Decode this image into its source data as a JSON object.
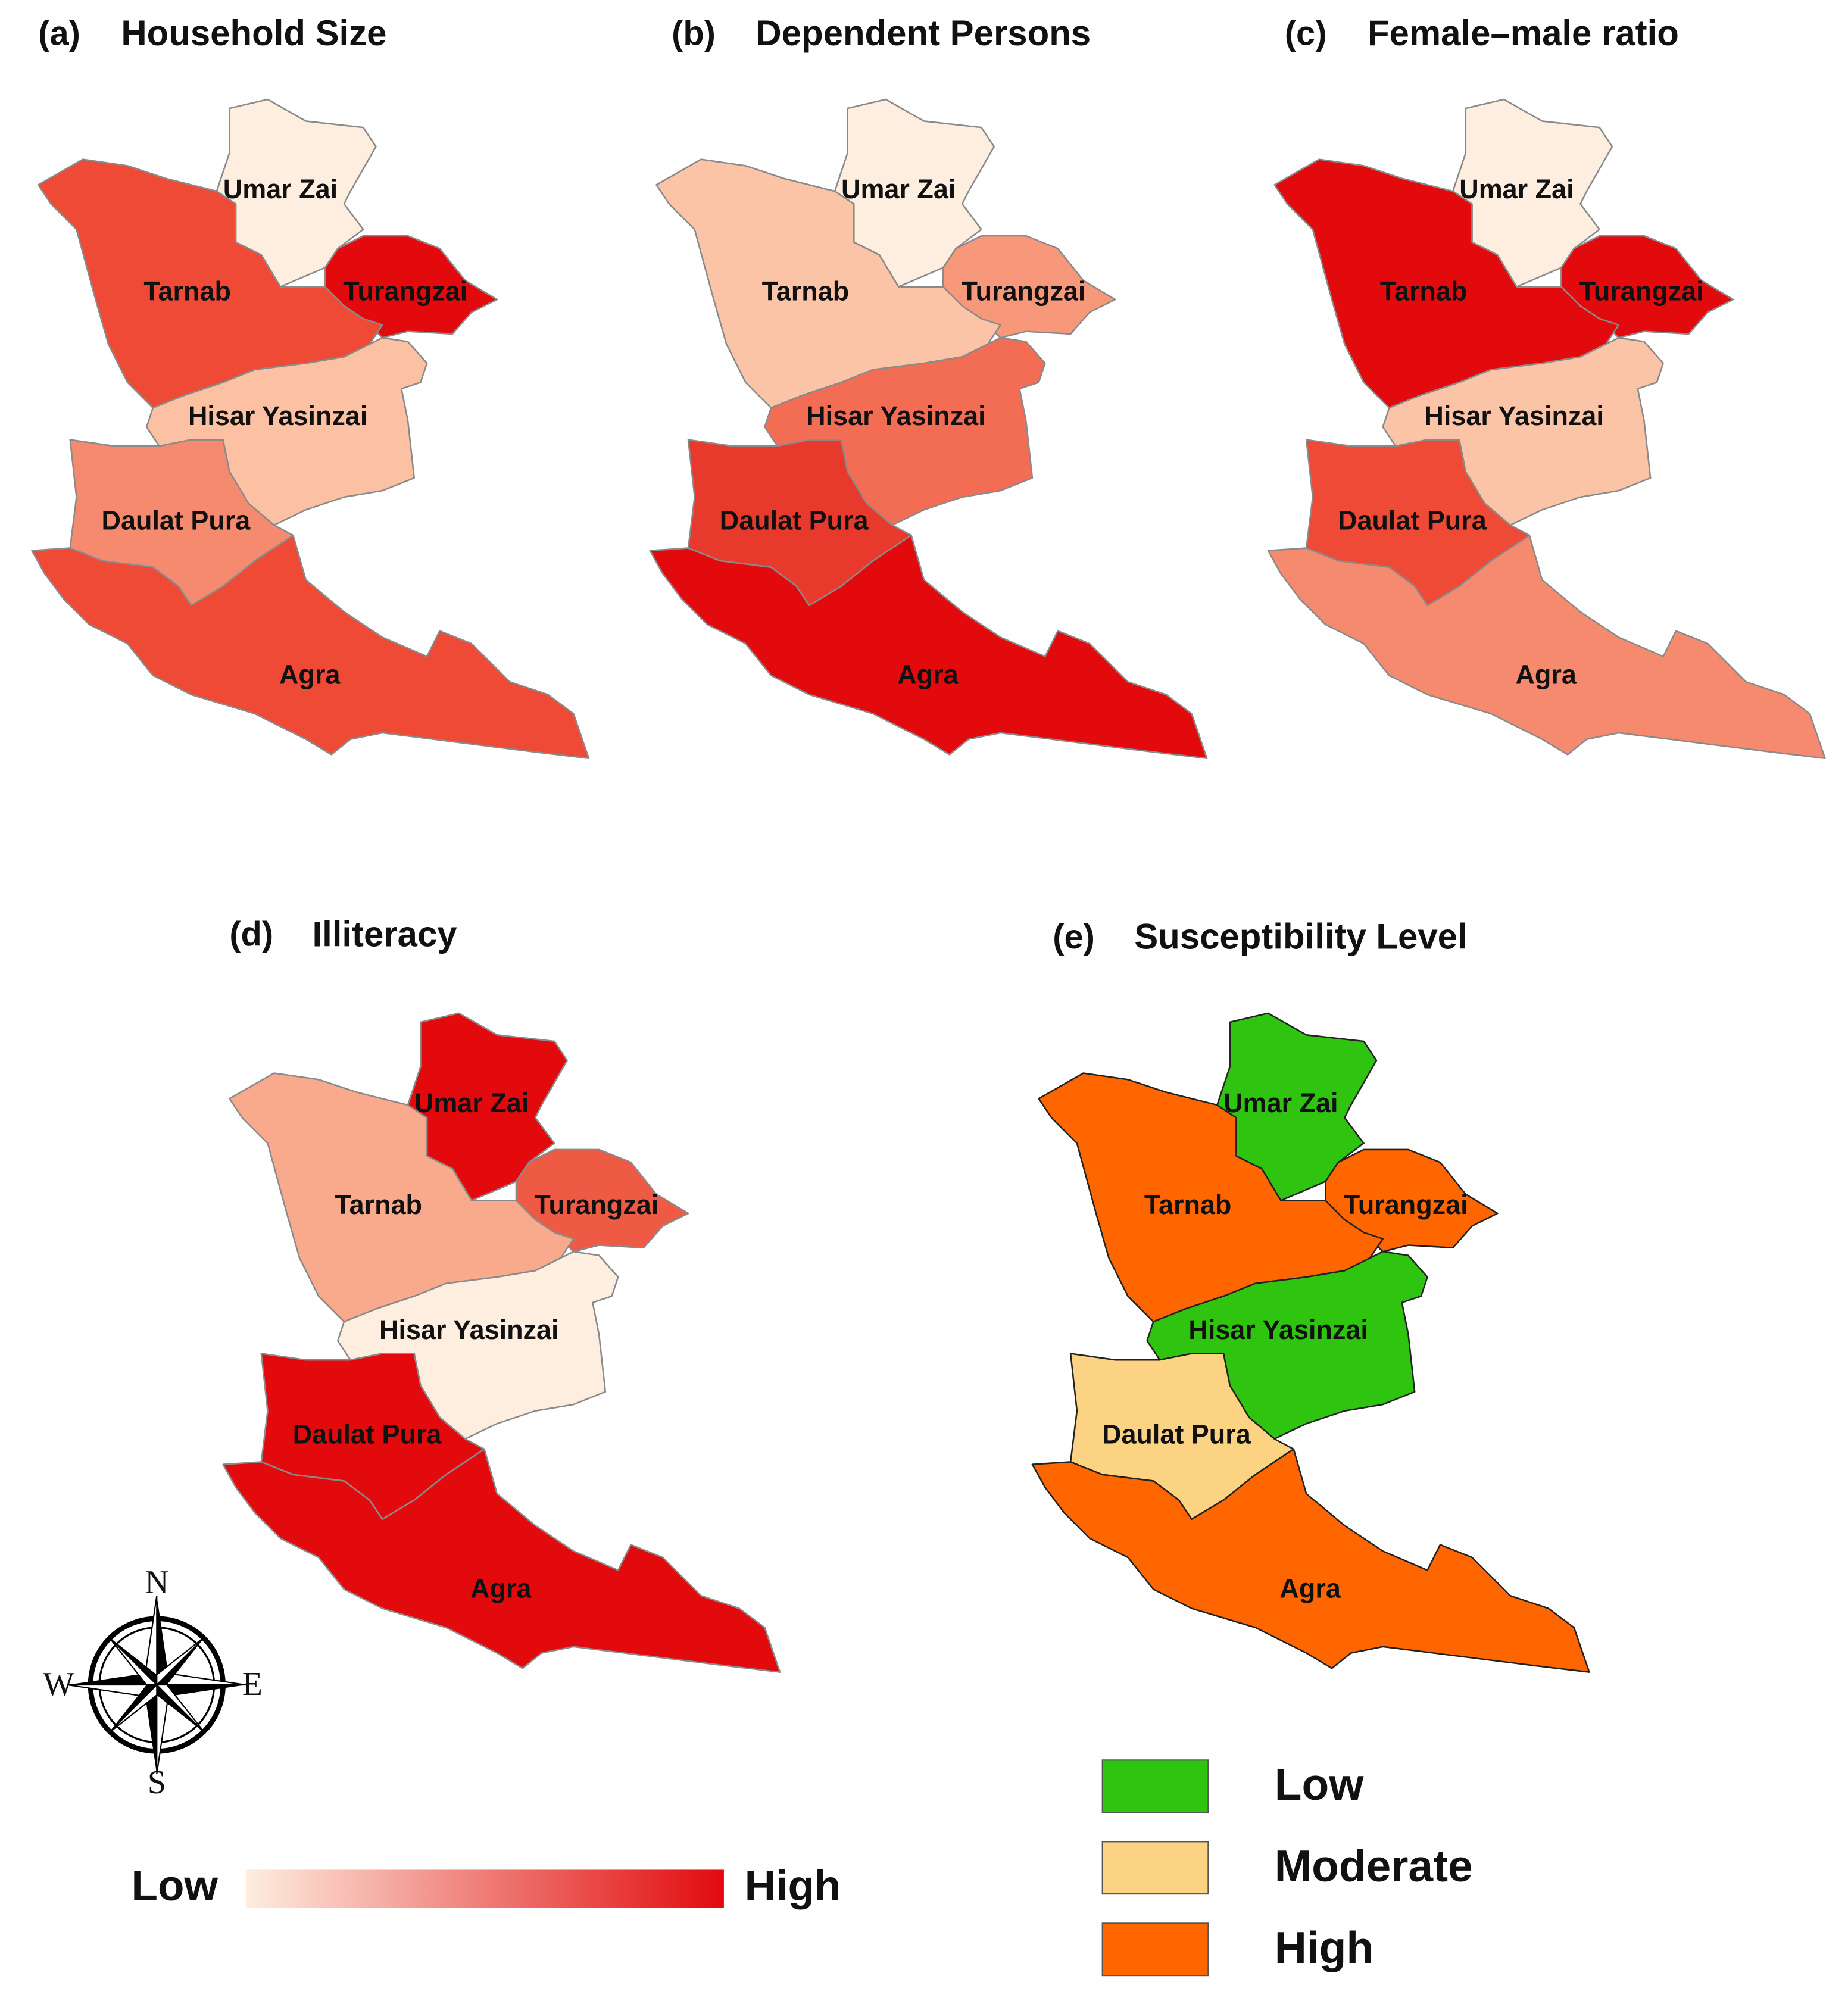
{
  "panels": [
    {
      "label": "(a)",
      "title": "Household Size",
      "outline": "#8a8a8a",
      "regions": [
        {
          "name": "Umar Zai",
          "color": "#fdeee0"
        },
        {
          "name": "Turangzai",
          "color": "#e20a0d"
        },
        {
          "name": "Tarnab",
          "color": "#ee4a36"
        },
        {
          "name": "Hisar Yasinzai",
          "color": "#fcc0a3"
        },
        {
          "name": "Daulat Pura",
          "color": "#f68a6f"
        },
        {
          "name": "Agra",
          "color": "#ee4a36"
        }
      ]
    },
    {
      "label": "(b)",
      "title": "Dependent Persons",
      "outline": "#8a8a8a",
      "regions": [
        {
          "name": "Umar Zai",
          "color": "#fdeee0"
        },
        {
          "name": "Turangzai",
          "color": "#f8987a"
        },
        {
          "name": "Tarnab",
          "color": "#fcc4a6"
        },
        {
          "name": "Hisar Yasinzai",
          "color": "#f36c54"
        },
        {
          "name": "Daulat Pura",
          "color": "#e73a2d"
        },
        {
          "name": "Agra",
          "color": "#e20a0d"
        }
      ]
    },
    {
      "label": "(c)",
      "title": "Female–male ratio",
      "outline": "#8a8a8a",
      "regions": [
        {
          "name": "Umar Zai",
          "color": "#fdeee0"
        },
        {
          "name": "Turangzai",
          "color": "#e20a0d"
        },
        {
          "name": "Tarnab",
          "color": "#e20a0d"
        },
        {
          "name": "Hisar Yasinzai",
          "color": "#fcc4a6"
        },
        {
          "name": "Daulat Pura",
          "color": "#ee4a36"
        },
        {
          "name": "Agra",
          "color": "#f68a6f"
        }
      ]
    },
    {
      "label": "(d)",
      "title": "Illiteracy",
      "outline": "#8a8a8a",
      "regions": [
        {
          "name": "Umar Zai",
          "color": "#e20a0d"
        },
        {
          "name": "Turangzai",
          "color": "#ee5a44"
        },
        {
          "name": "Tarnab",
          "color": "#f9a98c"
        },
        {
          "name": "Hisar Yasinzai",
          "color": "#fdeee0"
        },
        {
          "name": "Daulat Pura",
          "color": "#e20a0d"
        },
        {
          "name": "Agra",
          "color": "#e20a0d"
        }
      ]
    },
    {
      "label": "(e)",
      "title": "Susceptibility Level",
      "outline": "#222222",
      "regions": [
        {
          "name": "Umar Zai",
          "color": "#2ec40f"
        },
        {
          "name": "Turangzai",
          "color": "#ff6600"
        },
        {
          "name": "Tarnab",
          "color": "#ff6600"
        },
        {
          "name": "Hisar Yasinzai",
          "color": "#2ec40f"
        },
        {
          "name": "Daulat Pura",
          "color": "#fcd383"
        },
        {
          "name": "Agra",
          "color": "#ff6600"
        }
      ]
    }
  ],
  "compass": {
    "north": "N",
    "east": "E",
    "south": "S",
    "west": "W"
  },
  "gradient_legend": {
    "low": "Low",
    "high": "High",
    "low_color": "#fdeee0",
    "high_color": "#e20a0d"
  },
  "level_legend": [
    {
      "label": "Low",
      "color": "#2ec40f"
    },
    {
      "label": "Moderate",
      "color": "#fcd383"
    },
    {
      "label": "High",
      "color": "#ff6600"
    }
  ]
}
